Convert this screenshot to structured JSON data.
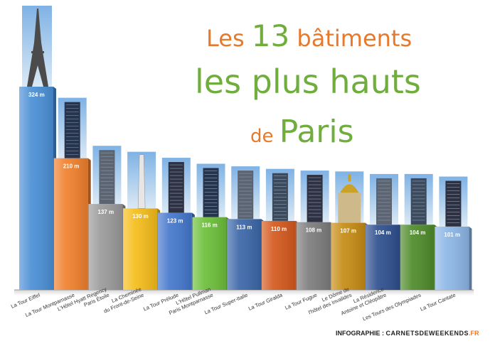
{
  "title": {
    "line1_prefix": "Les",
    "line1_number": "13",
    "line1_suffix": "bâtiments",
    "line2": "les plus hauts",
    "line3_prefix": "de",
    "line3_main": "Paris"
  },
  "credit": {
    "label": "INFOGRAPHIE :",
    "brand": "CARNETSDEWEEKENDS",
    "tld": ".FR"
  },
  "colors": {
    "title_orange": "#e8792b",
    "title_green": "#6fae3c"
  },
  "chart_data": {
    "type": "bar",
    "unit": "m",
    "ylim": [
      0,
      330
    ],
    "categories": [
      "La Tour Eiffel",
      "La Tour Montparnasse",
      "L'Hôtel Hyatt Regency Paris Étoile",
      "La Cheminée du Front-de-Seine",
      "La Tour Prélude",
      "L'Hôtel Pullman Paris Montparnasse",
      "La Tour Super-Italie",
      "La Tour Giralda",
      "La Tour Fugue",
      "Le Dôme de l'hôtel des Invalides",
      "La Résidence Antoine et Cléopâtre",
      "Les Tours des Olympiades",
      "La Tour Cantate"
    ],
    "category_lines": [
      [
        "La Tour Eiffel"
      ],
      [
        "La Tour Montparnasse"
      ],
      [
        "L'Hôtel Hyatt Regency",
        "Paris Étoile"
      ],
      [
        "La Cheminée",
        "du Front-de-Seine"
      ],
      [
        "La Tour Prélude"
      ],
      [
        "L'Hôtel Pullman",
        "Paris Montparnasse"
      ],
      [
        "La Tour Super-Italie"
      ],
      [
        "La Tour Giralda"
      ],
      [
        "La Tour Fugue"
      ],
      [
        "Le Dôme de",
        "l'hôtel des Invalides"
      ],
      [
        "La Résidence",
        "Antoine et Cléopâtre"
      ],
      [
        "Les Tours des Olympiades"
      ],
      [
        "La Tour Cantate"
      ]
    ],
    "values": [
      324,
      210,
      137,
      130,
      123,
      116,
      113,
      110,
      108,
      107,
      104,
      104,
      101
    ],
    "value_labels": [
      "324 m",
      "210 m",
      "137 m",
      "130 m",
      "123 m",
      "116 m",
      "113 m",
      "110 m",
      "108 m",
      "107 m",
      "104 m",
      "104 m",
      "101 m"
    ],
    "bar_colors": [
      "#4a8fd6",
      "#f0802c",
      "#9a9a9a",
      "#f5bd1a",
      "#4477cc",
      "#6cbf3a",
      "#3b67a8",
      "#d4581c",
      "#7d7d7d",
      "#c68c14",
      "#2e4f8f",
      "#4e8b2a",
      "#8cb6e6"
    ],
    "icons": [
      "eiffel-tower-photo",
      "building-photo",
      "building-photo",
      "chimney-photo",
      "building-photo",
      "building-photo",
      "building-photo",
      "building-photo",
      "building-photo",
      "dome-photo",
      "building-photo",
      "building-photo",
      "building-photo"
    ],
    "grid": false,
    "legend": "none"
  }
}
